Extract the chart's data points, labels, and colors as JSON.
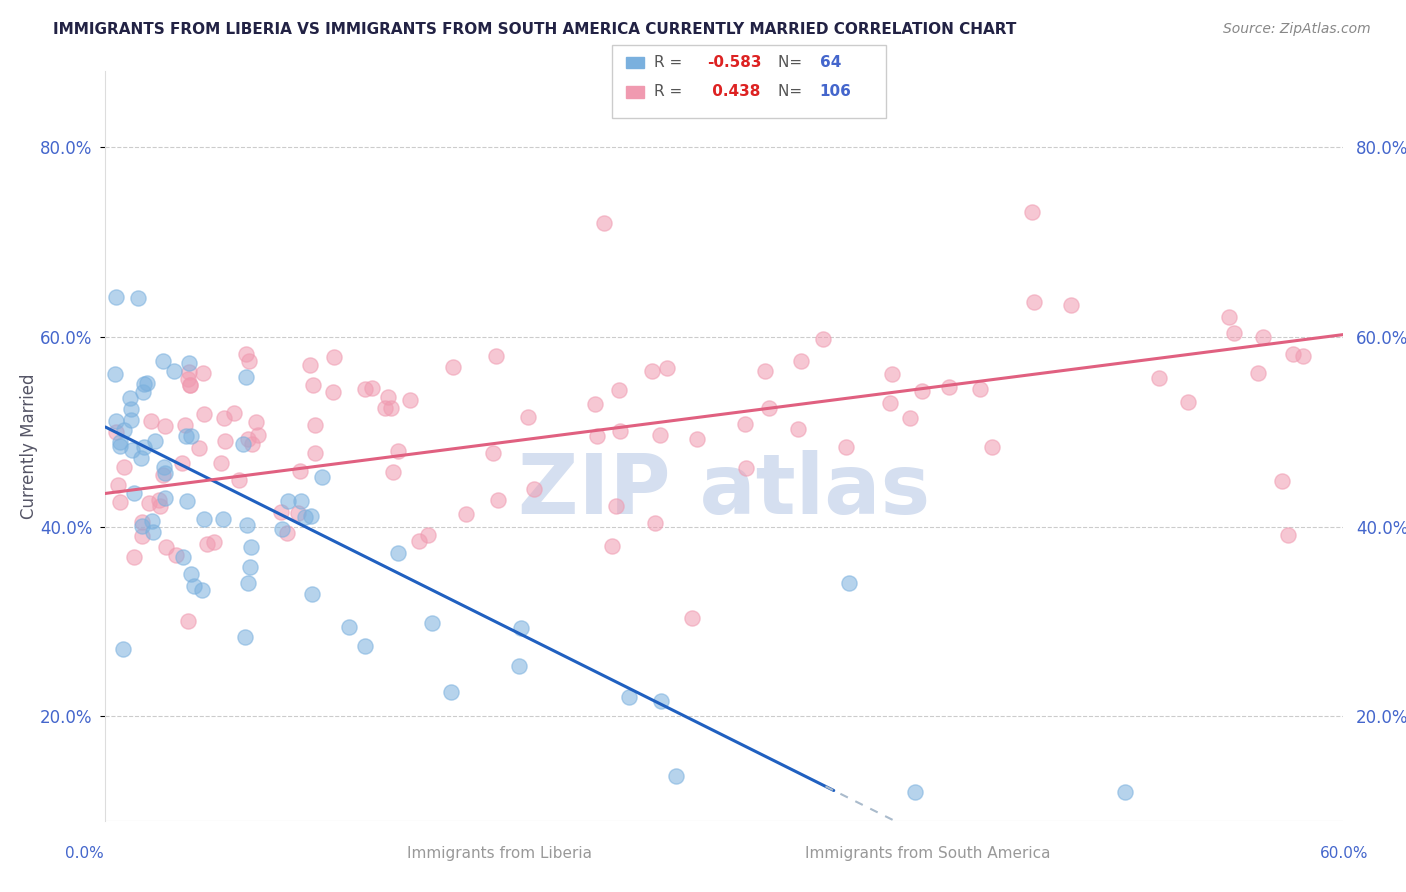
{
  "title": "IMMIGRANTS FROM LIBERIA VS IMMIGRANTS FROM SOUTH AMERICA CURRENTLY MARRIED CORRELATION CHART",
  "source": "Source: ZipAtlas.com",
  "ylabel": "Currently Married",
  "xlim": [
    0.0,
    0.62
  ],
  "ylim": [
    0.09,
    0.88
  ],
  "yticks": [
    0.2,
    0.4,
    0.6,
    0.8
  ],
  "ytick_labels": [
    "20.0%",
    "40.0%",
    "60.0%",
    "80.0%"
  ],
  "color_liberia": "#7ab0de",
  "color_south_america": "#f09ab0",
  "line_color_liberia": "#2060c0",
  "line_color_south_america": "#e06080",
  "watermark_color": "#d5dff0",
  "background_color": "#ffffff",
  "grid_color": "#cccccc",
  "title_color": "#222244",
  "axis_color": "#4466cc",
  "ylabel_color": "#555566"
}
